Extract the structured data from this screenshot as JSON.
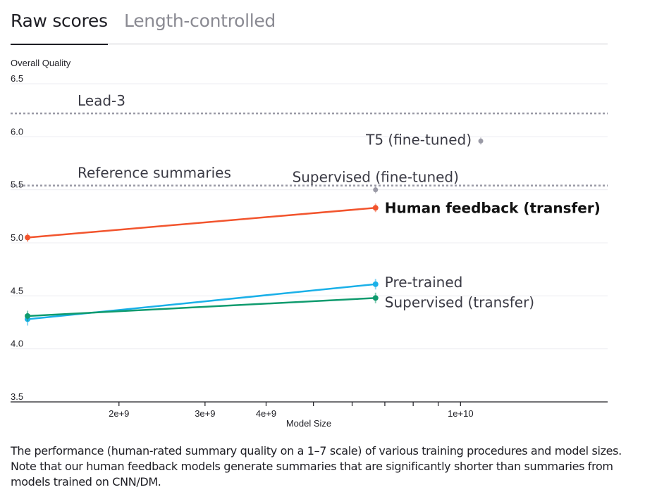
{
  "tabs": [
    {
      "label": "Raw scores",
      "active": true
    },
    {
      "label": "Length-controlled",
      "active": false
    }
  ],
  "caption": "The performance (human-rated summary quality on a 1–7 scale) of various training procedures and model sizes. Note that our human feedback models generate summaries that are significantly shorter than summaries from models trained on CNN/DM.",
  "chart_data": {
    "type": "line",
    "ylabel": "Overall Quality",
    "xlabel": "Model Size",
    "x_scale": "log",
    "xlim": [
      1200000000,
      20000000000
    ],
    "ylim": [
      3.5,
      6.5
    ],
    "y_ticks": [
      3.5,
      4.0,
      4.5,
      5.0,
      5.5,
      6.0,
      6.5
    ],
    "y_tick_labels": [
      "3.5",
      "4.0",
      "4.5",
      "5.0",
      "5.5",
      "6.0",
      "6.5"
    ],
    "x_major_ticks": [
      {
        "value": 2000000000,
        "label": "2e+9"
      },
      {
        "value": 3000000000,
        "label": "3e+9"
      },
      {
        "value": 4000000000,
        "label": "4e+9"
      },
      {
        "value": 5000000000,
        "label": ""
      },
      {
        "value": 6000000000,
        "label": ""
      },
      {
        "value": 7000000000,
        "label": ""
      },
      {
        "value": 8000000000,
        "label": ""
      },
      {
        "value": 9000000000,
        "label": ""
      },
      {
        "value": 10000000000,
        "label": "1e+10"
      }
    ],
    "series": [
      {
        "name": "Human feedback (transfer)",
        "color": "#f2542d",
        "bold": true,
        "x": [
          1300000000,
          6700000000
        ],
        "y": [
          5.05,
          5.33
        ],
        "err": [
          0.04,
          0.04
        ]
      },
      {
        "name": "Pre-trained",
        "color": "#1ab0e8",
        "x": [
          1300000000,
          6700000000
        ],
        "y": [
          4.28,
          4.61
        ],
        "err": [
          0.06,
          0.05
        ]
      },
      {
        "name": "Supervised (transfer)",
        "color": "#0f9b6e",
        "x": [
          1300000000,
          6700000000
        ],
        "y": [
          4.31,
          4.48
        ],
        "err": [
          0.05,
          0.05
        ]
      }
    ],
    "points": [
      {
        "name": "T5 (fine-tuned)",
        "color": "#9a9aa6",
        "x": 11000000000,
        "y": 5.96
      },
      {
        "name": "Supervised (fine-tuned)",
        "color": "#9a9aa6",
        "x": 6700000000,
        "y": 5.5
      }
    ],
    "reference_lines": [
      {
        "name": "Lead-3",
        "y": 6.22,
        "color": "#9a9aa6",
        "style": "dotted"
      },
      {
        "name": "Reference summaries",
        "y": 5.54,
        "color": "#9a9aa6",
        "style": "dotted"
      }
    ]
  }
}
